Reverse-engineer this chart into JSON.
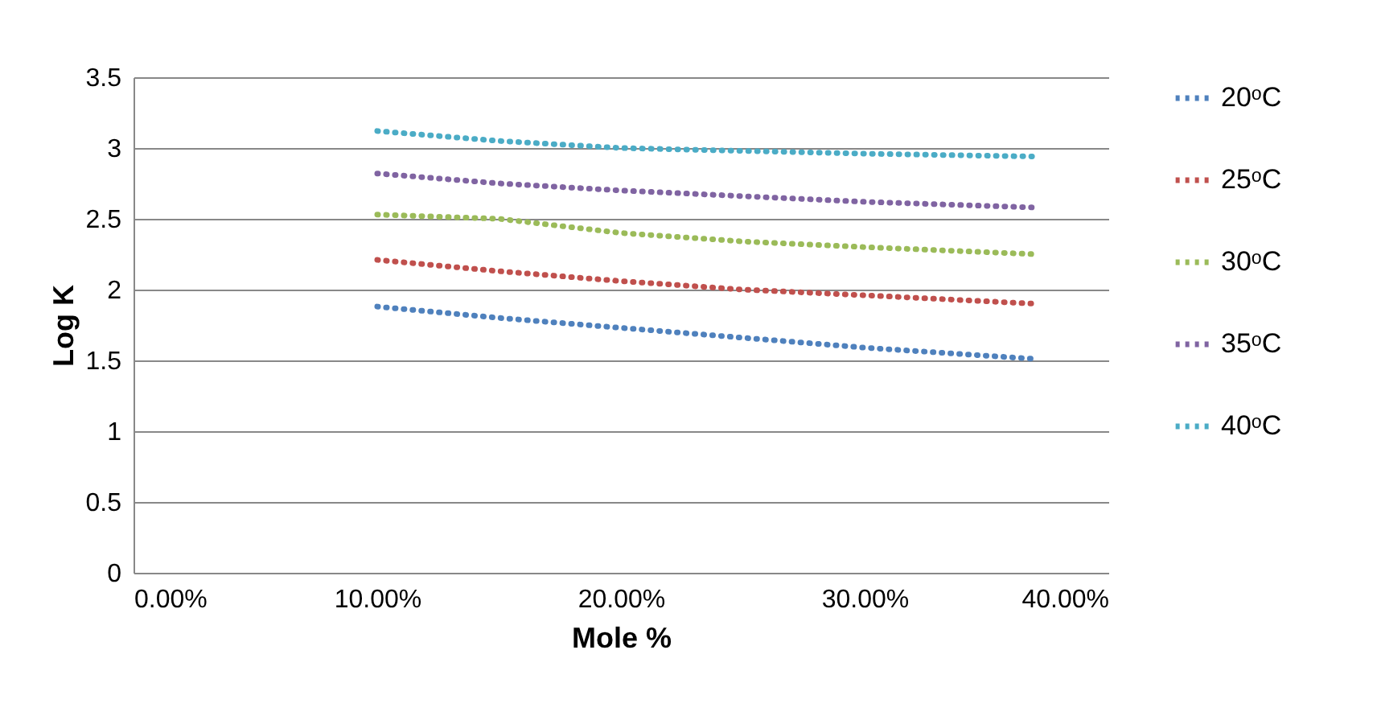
{
  "chart_data": {
    "type": "line",
    "xlabel": "Mole %",
    "ylabel": "Log K",
    "x": [
      10,
      15,
      20,
      25,
      30,
      37
    ],
    "series": [
      {
        "name": "20ᵒC",
        "color": "#4f81bd",
        "values": [
          1.88,
          1.8,
          1.73,
          1.66,
          1.59,
          1.51
        ]
      },
      {
        "name": "25ᵒC",
        "color": "#c0504d",
        "values": [
          2.21,
          2.13,
          2.06,
          2.0,
          1.96,
          1.9
        ]
      },
      {
        "name": "30ᵒC",
        "color": "#9bbb59",
        "values": [
          2.53,
          2.5,
          2.4,
          2.34,
          2.3,
          2.25
        ]
      },
      {
        "name": "35ᵒC",
        "color": "#8064a2",
        "values": [
          2.82,
          2.75,
          2.7,
          2.66,
          2.62,
          2.58
        ]
      },
      {
        "name": "40ᵒC",
        "color": "#4bacc6",
        "values": [
          3.12,
          3.05,
          3.0,
          2.98,
          2.96,
          2.94
        ]
      }
    ],
    "xlim": [
      0,
      40
    ],
    "xticks": [
      {
        "value": 0,
        "label": "0.00%"
      },
      {
        "value": 10,
        "label": "10.00%"
      },
      {
        "value": 20,
        "label": "20.00%"
      },
      {
        "value": 30,
        "label": "30.00%"
      },
      {
        "value": 40,
        "label": "40.00%"
      }
    ],
    "ylim": [
      0,
      3.5
    ],
    "yticks": [
      0,
      0.5,
      1,
      1.5,
      2,
      2.5,
      3,
      3.5
    ],
    "grid": "y",
    "legend": "right",
    "marker": "none",
    "line_style": "dotted"
  }
}
